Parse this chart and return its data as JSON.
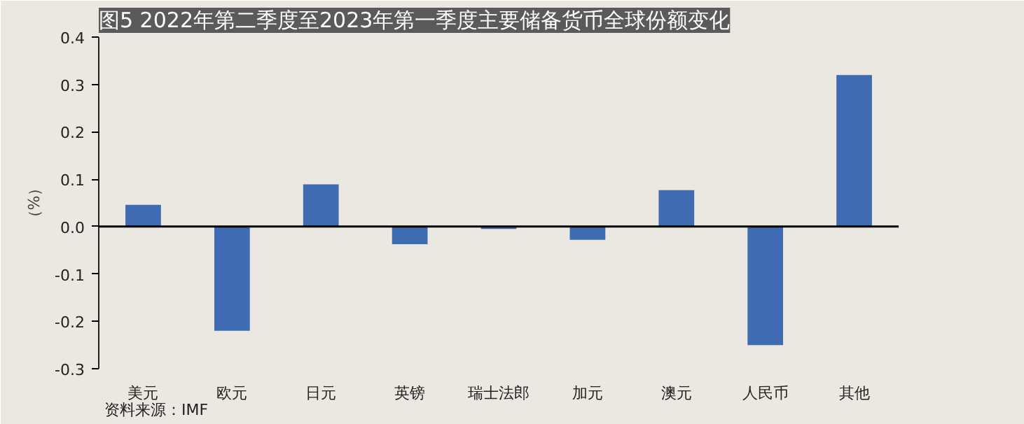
{
  "chart_data": {
    "type": "bar",
    "title": "图5 2022年第二季度至2023年第一季度主要储备货币全球份额变化",
    "ylabel": "（%）",
    "categories": [
      "美元",
      "欧元",
      "日元",
      "英镑",
      "瑞士法郎",
      "加元",
      "澳元",
      "人民币",
      "其他"
    ],
    "values": [
      0.046,
      -0.22,
      0.089,
      -0.037,
      -0.005,
      -0.028,
      0.077,
      -0.25,
      0.32
    ],
    "color": "#3f6bb3",
    "ylim": [
      -0.3,
      0.4
    ],
    "yticks": [
      {
        "value": -0.3,
        "label": "-0.3"
      },
      {
        "value": -0.2,
        "label": "-0.2"
      },
      {
        "value": -0.1,
        "label": "-0.1"
      },
      {
        "value": 0,
        "label": "0.0"
      },
      {
        "value": 0.1,
        "label": "0.1"
      },
      {
        "value": 0.2,
        "label": "0.2"
      },
      {
        "value": 0.3,
        "label": "0.3"
      },
      {
        "value": 0.4,
        "label": "0.4"
      }
    ],
    "ref_lines": [
      {
        "axis": "y",
        "value": 0
      }
    ],
    "grid": false,
    "annotations": [
      "资料来源：IMF"
    ]
  }
}
